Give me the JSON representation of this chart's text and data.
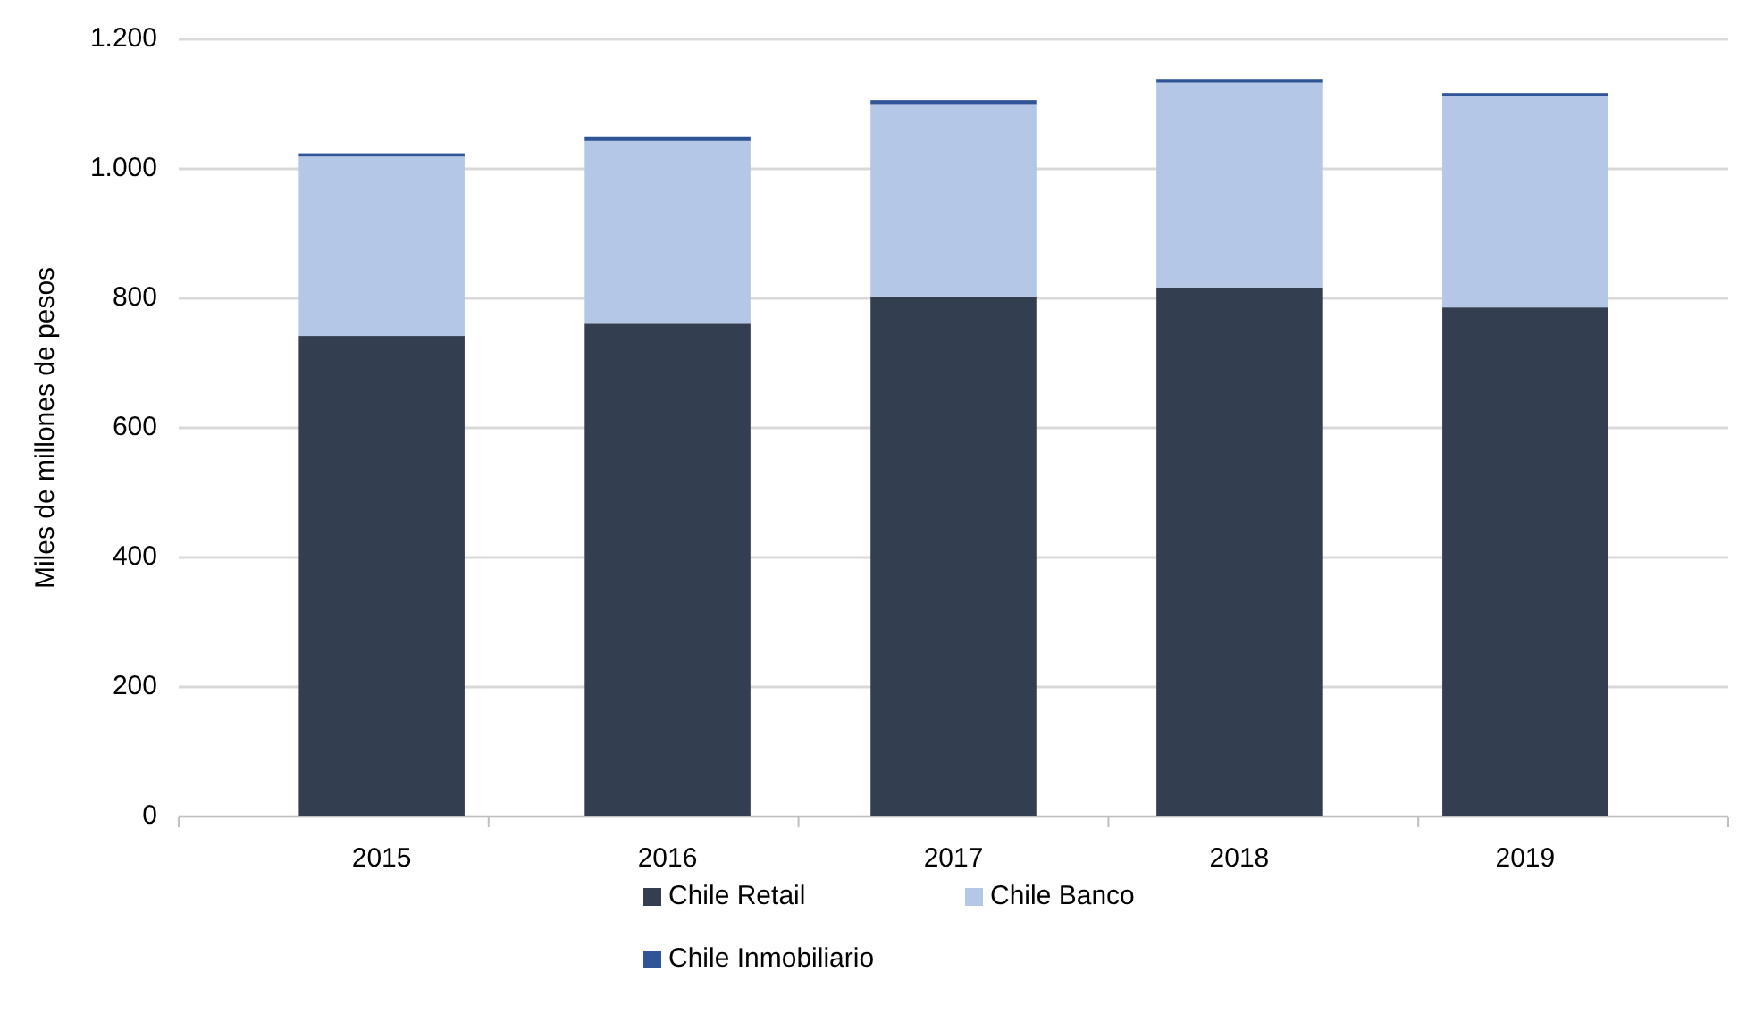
{
  "chart_data": {
    "type": "bar",
    "stacked": true,
    "ylabel": "Miles de millones de pesos",
    "categories": [
      "2015",
      "2016",
      "2017",
      "2018",
      "2019"
    ],
    "series": [
      {
        "name": "Chile Retail",
        "color": "#333f50",
        "values": [
          742,
          761,
          803,
          817,
          786
        ]
      },
      {
        "name": "Chile Banco",
        "color": "#b4c7e7",
        "values": [
          277,
          282,
          297,
          316,
          327
        ]
      },
      {
        "name": "Chile Inmobiliario",
        "color": "#2f5597",
        "values": [
          5,
          7,
          6,
          6,
          4
        ]
      }
    ],
    "ylim": [
      0,
      1200
    ],
    "yticks": [
      {
        "value": 0,
        "label": "0"
      },
      {
        "value": 200,
        "label": "200"
      },
      {
        "value": 400,
        "label": "400"
      },
      {
        "value": 600,
        "label": "600"
      },
      {
        "value": 800,
        "label": "800"
      },
      {
        "value": 1000,
        "label": "1.000"
      },
      {
        "value": 1200,
        "label": "1.200"
      }
    ],
    "grid": "y",
    "legend": "bottom"
  }
}
